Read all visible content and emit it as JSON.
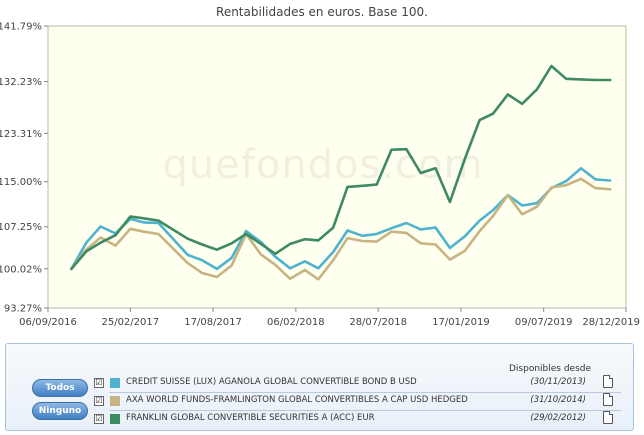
{
  "chart_data": {
    "type": "line",
    "title": "Rentabilidades en euros. Base 100.",
    "xlabel": "",
    "ylabel": "",
    "ylim": [
      93.27,
      141.79
    ],
    "x_range": [
      "2016-09-06",
      "2019-12-28"
    ],
    "y_ticks": [
      "93.27%",
      "100.02%",
      "107.25%",
      "115.00%",
      "123.31%",
      "132.23%",
      "141.79%"
    ],
    "x_ticks": [
      "06/09/2016",
      "25/02/2017",
      "17/08/2017",
      "06/02/2018",
      "28/07/2018",
      "17/01/2019",
      "09/07/2019",
      "28/12/2019"
    ],
    "watermark": "quefondos.com",
    "grid": false,
    "background": "#fffff0",
    "x": [
      "2016-10-25",
      "2016-11-25",
      "2016-12-25",
      "2017-01-25",
      "2017-02-25",
      "2017-03-25",
      "2017-04-25",
      "2017-06-25",
      "2017-07-25",
      "2017-08-25",
      "2017-09-25",
      "2017-10-25",
      "2017-11-25",
      "2017-12-25",
      "2018-01-25",
      "2018-02-25",
      "2018-03-25",
      "2018-04-25",
      "2018-05-25",
      "2018-06-25",
      "2018-07-25",
      "2018-08-25",
      "2018-09-25",
      "2018-10-25",
      "2018-11-25",
      "2018-12-25",
      "2019-01-25",
      "2019-02-25",
      "2019-03-25",
      "2019-04-25",
      "2019-05-25",
      "2019-06-25",
      "2019-07-25",
      "2019-08-25",
      "2019-09-25",
      "2019-10-25",
      "2019-11-25"
    ],
    "series": [
      {
        "name": "CREDIT SUISSE (LUX) AGANOLA GLOBAL CONVERTIBLE BOND B USD",
        "color": "#4fb3cf",
        "values": [
          100.0,
          104.5,
          107.3,
          106.1,
          108.6,
          108.0,
          107.9,
          102.4,
          101.5,
          100.0,
          101.9,
          106.5,
          104.6,
          102.1,
          100.1,
          101.3,
          100.1,
          102.9,
          106.6,
          105.7,
          106.0,
          107.0,
          107.9,
          106.8,
          107.1,
          103.6,
          105.6,
          108.3,
          110.1,
          112.7,
          110.9,
          111.3,
          113.9,
          115.1,
          117.3,
          115.4,
          115.2
        ]
      },
      {
        "name": "AXA WORLD FUNDS-FRAMLINGTON GLOBAL CONVERTIBLES A CAP USD HEDGED",
        "color": "#c8b482",
        "values": [
          100.0,
          103.3,
          105.4,
          104.0,
          106.9,
          106.4,
          106.0,
          101.0,
          99.3,
          98.6,
          100.6,
          106.0,
          102.5,
          100.7,
          98.3,
          99.8,
          98.2,
          101.5,
          105.3,
          104.8,
          104.7,
          106.4,
          106.2,
          104.4,
          104.2,
          101.6,
          103.1,
          106.5,
          109.1,
          112.7,
          109.4,
          110.7,
          114.0,
          114.4,
          115.5,
          113.9,
          113.7
        ]
      },
      {
        "name": "FRANKLIN GLOBAL CONVERTIBLE SECURITIES A (ACC) EUR",
        "color": "#3e8a62",
        "values": [
          100.0,
          103.0,
          104.5,
          105.8,
          109.0,
          108.7,
          108.3,
          105.2,
          104.2,
          103.3,
          104.4,
          106.0,
          104.3,
          102.6,
          104.3,
          105.1,
          104.9,
          107.1,
          114.1,
          114.3,
          114.5,
          120.5,
          120.6,
          116.5,
          117.3,
          111.5,
          118.9,
          125.6,
          126.7,
          130.0,
          128.4,
          130.9,
          134.9,
          132.7,
          132.6,
          132.5,
          132.5
        ]
      }
    ]
  },
  "legend": {
    "header": "Disponibles desde",
    "btn_todos": "Todos",
    "btn_ninguno": "Ninguno",
    "rows": [
      {
        "check": "☑",
        "name": "CREDIT SUISSE (LUX) AGANOLA GLOBAL CONVERTIBLE BOND B USD",
        "date": "(30/11/2013)",
        "color": "#4fb3cf"
      },
      {
        "check": "☑",
        "name": "AXA WORLD FUNDS-FRAMLINGTON GLOBAL CONVERTIBLES A CAP USD HEDGED",
        "date": "(31/10/2014)",
        "color": "#c8b482"
      },
      {
        "check": "☑",
        "name": "FRANKLIN GLOBAL CONVERTIBLE SECURITIES A (ACC) EUR",
        "date": "(29/02/2012)",
        "color": "#3e8a62"
      }
    ]
  }
}
